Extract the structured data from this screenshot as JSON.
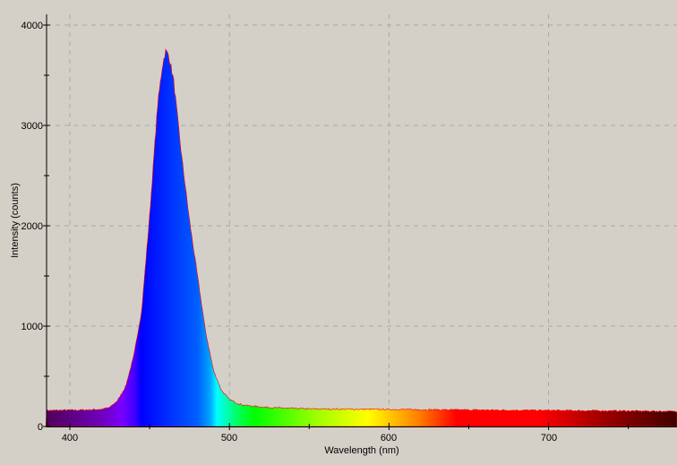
{
  "chart_data": {
    "type": "area",
    "title": "",
    "xlabel": "Wavelength (nm)",
    "ylabel": "Intensity (counts)",
    "xlim": [
      385,
      781
    ],
    "ylim": [
      0,
      4100
    ],
    "grid": true,
    "x_ticks": [
      "400",
      "500",
      "600",
      "700"
    ],
    "y_ticks": [
      "0",
      "1000",
      "2000",
      "3000",
      "4000"
    ],
    "x": [
      385,
      390,
      395,
      400,
      405,
      410,
      415,
      420,
      425,
      430,
      435,
      440,
      445,
      450,
      455,
      458,
      460,
      462,
      465,
      470,
      475,
      480,
      485,
      490,
      495,
      500,
      505,
      510,
      520,
      530,
      550,
      600,
      650,
      700,
      750,
      781
    ],
    "y": [
      160,
      160,
      162,
      162,
      163,
      165,
      168,
      172,
      190,
      260,
      400,
      700,
      1150,
      2100,
      3200,
      3600,
      3740,
      3700,
      3450,
      2700,
      2050,
      1500,
      950,
      560,
      360,
      270,
      230,
      210,
      195,
      185,
      175,
      170,
      165,
      160,
      155,
      150
    ],
    "fill": "wavelength-spectrum-colors",
    "outline_color": "#ff0000",
    "background": "#d4d0c8"
  }
}
